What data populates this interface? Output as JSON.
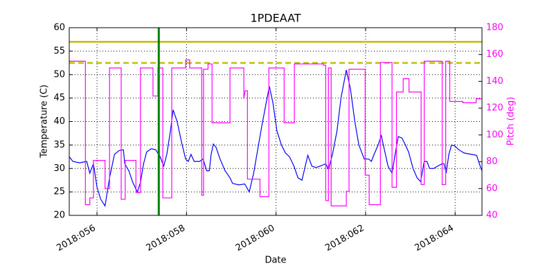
{
  "chart_data": {
    "type": "line",
    "title": "1PDEAAT",
    "xlabel": "Date",
    "ylabel": "Temperature (C)",
    "y2label": "Pitch (deg)",
    "y2color": "#ff00ff",
    "grid": true,
    "xlim": [
      55.38,
      64.6
    ],
    "ylim": [
      20,
      60
    ],
    "y2lim": [
      40,
      180
    ],
    "xticks": [
      {
        "value": 56,
        "label": "2018:056"
      },
      {
        "value": 58,
        "label": "2018:058"
      },
      {
        "value": 60,
        "label": "2018:060"
      },
      {
        "value": 62,
        "label": "2018:062"
      },
      {
        "value": 64,
        "label": "2018:064"
      }
    ],
    "yticks": [
      20,
      25,
      30,
      35,
      40,
      45,
      50,
      55,
      60
    ],
    "y2ticks": [
      40,
      60,
      80,
      100,
      120,
      140,
      160,
      180
    ],
    "hlines": [
      {
        "value": 57,
        "color": "#bfbf00",
        "style": "solid"
      },
      {
        "value": 52.5,
        "color": "#bfbf00",
        "style": "dashed"
      }
    ],
    "vlines": [
      {
        "value": 57.38,
        "color": "#008000"
      }
    ],
    "series": [
      {
        "color": "#0000ff",
        "axis": "y",
        "x": [
          55.38,
          55.46,
          55.61,
          55.77,
          55.84,
          55.92,
          56.0,
          56.08,
          56.18,
          56.28,
          56.39,
          56.49,
          56.59,
          56.62,
          56.71,
          56.8,
          56.9,
          56.97,
          57.04,
          57.11,
          57.21,
          57.31,
          57.41,
          57.49,
          57.56,
          57.64,
          57.7,
          57.79,
          57.89,
          57.98,
          58.04,
          58.1,
          58.17,
          58.29,
          58.37,
          58.45,
          58.51,
          58.55,
          58.6,
          58.66,
          58.75,
          58.86,
          58.97,
          59.03,
          59.17,
          59.3,
          59.4,
          59.5,
          59.59,
          59.68,
          59.78,
          59.85,
          59.93,
          60.02,
          60.12,
          60.21,
          60.3,
          60.4,
          60.49,
          60.58,
          60.64,
          60.71,
          60.8,
          60.89,
          60.98,
          61.11,
          61.17,
          61.26,
          61.36,
          61.45,
          61.57,
          61.66,
          61.76,
          61.85,
          61.97,
          62.07,
          62.13,
          62.19,
          62.28,
          62.35,
          62.42,
          62.5,
          62.59,
          62.66,
          62.73,
          62.81,
          62.89,
          62.96,
          63.06,
          63.15,
          63.23,
          63.31,
          63.37,
          63.43,
          63.52,
          63.61,
          63.71,
          63.75,
          63.8,
          63.86,
          63.92,
          63.99,
          64.08,
          64.2,
          64.36,
          64.48,
          64.56,
          64.6
        ],
        "values": [
          32.5,
          31.5,
          31.2,
          31.5,
          29,
          31,
          26,
          23.5,
          22,
          28,
          33,
          33.8,
          34,
          31,
          29.5,
          27,
          25,
          27,
          31,
          33.5,
          34.2,
          34,
          32.5,
          30.5,
          33,
          38,
          42.5,
          40,
          35.5,
          32,
          31.5,
          33,
          31.5,
          31.5,
          32,
          29.5,
          29.5,
          33,
          35.2,
          34.5,
          32,
          29.5,
          28,
          26.8,
          26.5,
          26.7,
          25,
          29,
          34,
          39,
          44,
          47.5,
          44,
          38,
          35,
          33.3,
          32.5,
          30.5,
          28,
          27.5,
          30,
          32.8,
          30.5,
          30.2,
          30.5,
          31,
          29.8,
          33,
          38,
          45,
          51,
          47,
          40,
          35,
          32,
          32,
          31.5,
          33,
          35,
          37,
          34,
          30.5,
          29,
          33,
          36.8,
          36.5,
          35,
          33.5,
          30,
          28,
          27.2,
          31.5,
          31.5,
          30,
          30,
          30.5,
          31,
          31,
          29,
          33,
          35,
          34.8,
          34,
          33.3,
          33,
          32.8,
          30.5,
          29.5
        ]
      },
      {
        "color": "#ff00ff",
        "axis": "y2",
        "x": [
          55.38,
          55.74,
          55.74,
          55.84,
          55.84,
          55.92,
          55.92,
          56.18,
          56.18,
          56.28,
          56.28,
          56.54,
          56.54,
          56.63,
          56.63,
          56.87,
          56.87,
          56.97,
          56.97,
          57.25,
          57.25,
          57.36,
          57.36,
          57.47,
          57.47,
          57.67,
          57.67,
          57.98,
          57.98,
          58.07,
          58.07,
          58.34,
          58.34,
          58.38,
          58.38,
          58.48,
          58.48,
          58.57,
          58.57,
          58.97,
          58.97,
          59.28,
          59.28,
          59.31,
          59.36,
          59.36,
          59.64,
          59.64,
          59.84,
          59.84,
          60.18,
          60.18,
          60.41,
          60.41,
          61.06,
          61.06,
          61.11,
          61.11,
          61.17,
          61.17,
          61.23,
          61.23,
          61.57,
          61.57,
          61.63,
          61.63,
          61.99,
          61.99,
          62.08,
          62.08,
          62.33,
          62.33,
          62.59,
          62.59,
          62.69,
          62.69,
          62.84,
          62.84,
          62.97,
          62.97,
          63.24,
          63.24,
          63.31,
          63.31,
          63.71,
          63.71,
          63.79,
          63.79,
          63.88,
          63.88,
          64.17,
          64.17,
          64.47,
          64.47,
          64.6
        ],
        "values": [
          155,
          155,
          48,
          48,
          53,
          53,
          81,
          81,
          60,
          60,
          150,
          150,
          52,
          52,
          81,
          81,
          57,
          57,
          150,
          150,
          129,
          129,
          150,
          150,
          53,
          53,
          150,
          150,
          156,
          156,
          150,
          150,
          55,
          55,
          149,
          149,
          153,
          153,
          109,
          109,
          150,
          150,
          127,
          133,
          133,
          67,
          67,
          54,
          54,
          150,
          150,
          109,
          109,
          153,
          153,
          152,
          152,
          51,
          51,
          150,
          150,
          47,
          47,
          58,
          58,
          149,
          149,
          70,
          70,
          48,
          48,
          154,
          154,
          61,
          61,
          132,
          132,
          142,
          142,
          132,
          132,
          63,
          63,
          155,
          155,
          63,
          63,
          155,
          155,
          125,
          125,
          124,
          124,
          127,
          127
        ]
      }
    ]
  }
}
